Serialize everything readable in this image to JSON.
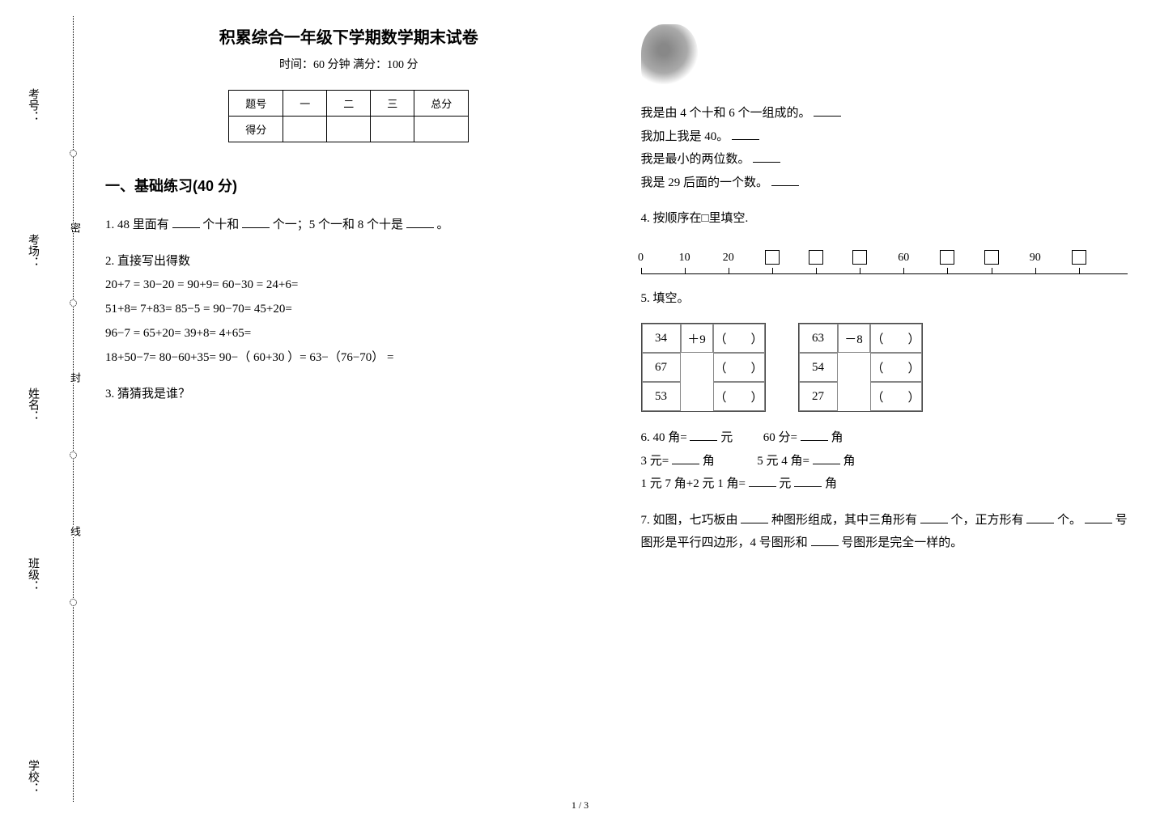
{
  "binding": {
    "fields": {
      "school": "学校：",
      "class": "班级：",
      "name": "姓名：",
      "room": "考场：",
      "num": "考号："
    },
    "chars": {
      "c1": "密",
      "c2": "封",
      "c3": "线"
    }
  },
  "title": "积累综合一年级下学期数学期末试卷",
  "subtitle": "时间：60 分钟   满分：100 分",
  "score_table": {
    "head": [
      "题号",
      "一",
      "二",
      "三",
      "总分"
    ],
    "row_label": "得分"
  },
  "section1": {
    "heading": "一、基础练习(40 分)"
  },
  "q1": {
    "p1a": "1. 48 里面有",
    "p1b": "个十和",
    "p1c": "个一；5 个一和 8 个十是",
    "p1d": "。"
  },
  "q2": {
    "label": "2. 直接写出得数",
    "line1": "20+7 =  30−20 =  90+9=                     60−30  =                          24+6=",
    "line2": "51+8=  7+83=  85−5  =               90−70=                         45+20=",
    "line3": "96−7 =  65+20=  39+8=  4+65=",
    "line4": "18+50−7=                      80−60+35=                   90−（ 60+30 ）=              63−（76−70） ="
  },
  "q3": {
    "label": "3. 猜猜我是谁？"
  },
  "riddles": {
    "r1": "我是由 4 个十和 6 个一组成的。",
    "r2": "我加上我是 40。",
    "r3": "我是最小的两位数。",
    "r4": "我是 29 后面的一个数。"
  },
  "q4": {
    "label": "4. 按顺序在□里填空."
  },
  "number_line": {
    "ticks": [
      0,
      1,
      2,
      3,
      4,
      5,
      6,
      7,
      8,
      9,
      10
    ],
    "labels": {
      "0": "0",
      "1": "10",
      "2": "20",
      "6": "60",
      "9": "90"
    },
    "boxes": [
      3,
      4,
      5,
      7,
      8,
      10
    ],
    "spacing_pct": 9
  },
  "q5": {
    "label": "5. 填空。"
  },
  "fill_tables": {
    "left": {
      "op": "＋9",
      "rows": [
        "34",
        "67",
        "53"
      ]
    },
    "right": {
      "op": "－8",
      "rows": [
        "63",
        "54",
        "27"
      ]
    },
    "paren_pair": "（　　）"
  },
  "q6": {
    "a1": "6.  40 角=",
    "a2": "元",
    "b1": "60 分=",
    "b2": "角",
    "c1": "3 元=",
    "c2": "角",
    "d1": "5 元 4 角=",
    "d2": "角",
    "e1": "1 元 7 角+2 元 1 角=",
    "e2": "元",
    "e3": "角"
  },
  "q7": {
    "p1": "7. 如图，七巧板由",
    "p2": "种图形组成，其中三角形有",
    "p3": "个，正方形有",
    "p4": "个。",
    "p5": "号图形是平行四边形，4 号图形和",
    "p6": "号图形是完全一样的。"
  },
  "page_num": "1 / 3",
  "colors": {
    "text": "#000000",
    "bg": "#ffffff",
    "dotted": "#000000"
  }
}
